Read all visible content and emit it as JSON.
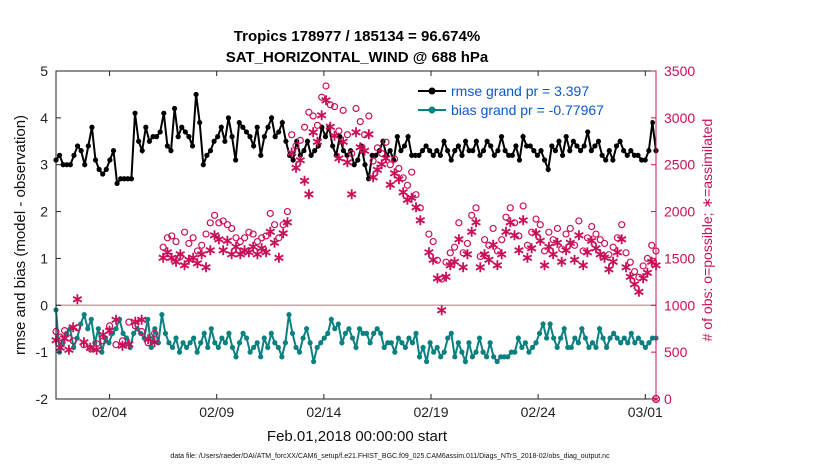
{
  "chart_data": {
    "type": "line",
    "title_line1": "Tropics 178977 / 185134 = 96.674%",
    "title_line2": "SAT_HORIZONTAL_WIND @ 688 hPa",
    "xlabel": "Feb.01,2018 00:00:00 start",
    "ylabel_left": "rmse and bias (model - observation)",
    "ylabel_right": "# of obs: o=possible; ∗=assimilated",
    "footer": "data file: /Users/raeder/DAI/ATM_forcXX/CAM6_setup/f.e21.FHIST_BGC.f09_025.CAM6assim.011/Diags_NTrS_2018-02/obs_diag_output.nc",
    "xlim": [
      1,
      29
    ],
    "ylim_left": [
      -2,
      5
    ],
    "ylim_right": [
      0,
      3500
    ],
    "x_ticks": [
      {
        "value": 3.5,
        "label": "02/04"
      },
      {
        "value": 8.5,
        "label": "02/09"
      },
      {
        "value": 13.5,
        "label": "02/14"
      },
      {
        "value": 18.5,
        "label": "02/19"
      },
      {
        "value": 23.5,
        "label": "02/24"
      },
      {
        "value": 28.5,
        "label": "03/01"
      }
    ],
    "y_ticks_left": [
      "-2",
      "-1",
      "0",
      "1",
      "2",
      "3",
      "4",
      "5"
    ],
    "y_ticks_right": [
      "0",
      "500",
      "1000",
      "1500",
      "2000",
      "2500",
      "3000",
      "3500"
    ],
    "zero_line": 0,
    "legend": {
      "position": "top-right",
      "entries": [
        "rmse grand pr = 3.397",
        "bias grand pr = -0.77967"
      ]
    },
    "colors": {
      "rmse": "#000000",
      "bias": "#0b8080",
      "obs": "#c8105a",
      "legend_text": "#0b57d0",
      "zero_line": "#c9a5a5"
    },
    "rmse": [
      3.1,
      3.2,
      3.0,
      3.0,
      3.0,
      3.2,
      3.4,
      3.3,
      3.0,
      3.4,
      3.8,
      3.1,
      2.9,
      2.8,
      2.9,
      3.1,
      3.3,
      2.6,
      2.7,
      2.7,
      2.7,
      2.7,
      4.1,
      3.5,
      3.3,
      3.8,
      3.5,
      3.6,
      3.6,
      3.7,
      4.1,
      3.4,
      3.3,
      4.2,
      3.6,
      3.8,
      3.7,
      3.6,
      3.4,
      4.5,
      3.9,
      3.0,
      3.2,
      3.3,
      3.5,
      3.6,
      3.8,
      3.5,
      4.0,
      3.6,
      3.1,
      3.9,
      3.8,
      3.7,
      3.6,
      3.4,
      3.8,
      3.2,
      3.6,
      3.8,
      4.0,
      3.6,
      3.7,
      3.9,
      3.5,
      3.2,
      3.1,
      3.5,
      3.2,
      3.3,
      3.5,
      3.2,
      3.3,
      3.4,
      3.8,
      3.6,
      3.8,
      3.4,
      3.2,
      3.6,
      3.3,
      3.2,
      3.3,
      3.0,
      3.1,
      3.4,
      3.0,
      2.7,
      3.2,
      3.2,
      3.3,
      3.5,
      3.2,
      3.3,
      3.1,
      3.6,
      3.3,
      3.4,
      3.6,
      3.2,
      3.2,
      3.2,
      3.3,
      3.4,
      3.3,
      3.2,
      3.3,
      3.2,
      3.5,
      3.3,
      3.1,
      3.3,
      3.4,
      3.2,
      3.5,
      3.3,
      3.3,
      3.5,
      3.2,
      3.3,
      3.5,
      3.4,
      3.2,
      3.3,
      3.6,
      3.3,
      3.2,
      3.2,
      3.4,
      3.1,
      3.6,
      3.4,
      3.4,
      3.3,
      3.2,
      3.3,
      3.1,
      2.9,
      3.4,
      3.3,
      3.5,
      3.2,
      3.6,
      3.3,
      3.5,
      3.4,
      3.3,
      3.4,
      3.7,
      3.3,
      3.4,
      3.5,
      3.2,
      3.1,
      3.3,
      3.1,
      3.4,
      3.5,
      3.3,
      3.2,
      3.3,
      3.2,
      3.2,
      3.1,
      3.1,
      3.3,
      3.9,
      3.3
    ],
    "bias": [
      -0.1,
      -1.0,
      -0.8,
      -0.6,
      -0.5,
      -0.9,
      -0.7,
      -0.4,
      -0.2,
      -0.5,
      -0.3,
      -0.8,
      -0.5,
      -1.0,
      -0.7,
      -0.8,
      -0.6,
      -0.5,
      -0.3,
      -0.6,
      -0.7,
      -0.9,
      -0.6,
      -0.5,
      -0.6,
      -0.7,
      -0.3,
      -0.9,
      -0.5,
      -0.8,
      -0.2,
      -0.6,
      -0.8,
      -0.9,
      -0.7,
      -1.0,
      -0.8,
      -0.9,
      -0.8,
      -0.7,
      -1.0,
      -0.8,
      -0.6,
      -0.9,
      -0.5,
      -0.8,
      -0.9,
      -0.7,
      -0.8,
      -0.6,
      -0.9,
      -1.1,
      -0.8,
      -0.6,
      -0.7,
      -1.0,
      -0.9,
      -0.8,
      -1.1,
      -0.7,
      -0.9,
      -0.6,
      -0.8,
      -0.9,
      -1.1,
      -0.8,
      -0.2,
      -0.6,
      -0.9,
      -1.0,
      -0.7,
      -0.5,
      -0.8,
      -1.2,
      -0.9,
      -0.8,
      -0.7,
      -0.6,
      -0.3,
      -0.5,
      -0.4,
      -0.8,
      -0.6,
      -0.5,
      -0.7,
      -0.9,
      -0.5,
      -0.6,
      -0.6,
      -0.8,
      -0.6,
      -0.5,
      -0.6,
      -0.9,
      -0.8,
      -0.8,
      -1.0,
      -0.7,
      -0.8,
      -0.9,
      -0.7,
      -0.8,
      -0.6,
      -1.1,
      -0.9,
      -1.2,
      -0.8,
      -1.0,
      -0.9,
      -1.1,
      -1.0,
      -0.7,
      -0.6,
      -1.1,
      -0.8,
      -1.0,
      -1.2,
      -0.8,
      -1.1,
      -1.0,
      -0.7,
      -1.0,
      -1.1,
      -0.8,
      -1.1,
      -1.2,
      -1.1,
      -1.1,
      -1.1,
      -1.0,
      -1.0,
      -0.7,
      -0.9,
      -0.8,
      -1.0,
      -0.9,
      -0.8,
      -0.6,
      -0.4,
      -0.7,
      -0.4,
      -0.7,
      -0.9,
      -0.7,
      -0.5,
      -0.9,
      -0.9,
      -0.7,
      -0.8,
      -0.5,
      -0.7,
      -0.9,
      -0.8,
      -0.9,
      -0.5,
      -0.7,
      -0.9,
      -0.7,
      -0.6,
      -0.7,
      -0.8,
      -0.7,
      -0.8,
      -0.6,
      -0.8,
      -0.7,
      -0.8,
      -0.9,
      -0.8,
      -0.7,
      -0.7
    ],
    "obs_possible": [
      [
        1.0,
        720
      ],
      [
        1.2,
        660
      ],
      [
        1.4,
        730
      ],
      [
        1.6,
        650
      ],
      [
        1.8,
        620
      ],
      [
        2.0,
        760
      ],
      [
        2.3,
        580
      ],
      [
        2.6,
        540
      ],
      [
        2.9,
        590
      ],
      [
        3.2,
        620
      ],
      [
        3.5,
        780
      ],
      [
        3.8,
        580
      ],
      [
        4.1,
        620
      ],
      [
        4.4,
        820
      ],
      [
        4.7,
        780
      ],
      [
        5.0,
        720
      ],
      [
        5.3,
        600
      ],
      [
        5.6,
        700
      ],
      [
        6.0,
        1620
      ],
      [
        6.2,
        1720
      ],
      [
        6.4,
        1740
      ],
      [
        6.6,
        1680
      ],
      [
        6.8,
        1520
      ],
      [
        7.0,
        1780
      ],
      [
        7.2,
        1660
      ],
      [
        7.4,
        1720
      ],
      [
        7.6,
        1580
      ],
      [
        7.8,
        1640
      ],
      [
        8.0,
        1760
      ],
      [
        8.2,
        1880
      ],
      [
        8.4,
        1960
      ],
      [
        8.6,
        1880
      ],
      [
        8.8,
        1900
      ],
      [
        9.0,
        1860
      ],
      [
        9.2,
        1820
      ],
      [
        9.4,
        1720
      ],
      [
        9.6,
        1680
      ],
      [
        9.8,
        1720
      ],
      [
        10.0,
        1780
      ],
      [
        10.2,
        1760
      ],
      [
        10.4,
        1680
      ],
      [
        10.6,
        1720
      ],
      [
        10.8,
        1740
      ],
      [
        11.0,
        1980
      ],
      [
        11.2,
        1860
      ],
      [
        11.4,
        1720
      ],
      [
        11.6,
        1860
      ],
      [
        11.8,
        2000
      ],
      [
        12.0,
        2820
      ],
      [
        12.2,
        2700
      ],
      [
        12.4,
        2760
      ],
      [
        12.6,
        2900
      ],
      [
        12.8,
        3060
      ],
      [
        13.0,
        3020
      ],
      [
        13.2,
        2920
      ],
      [
        13.4,
        3220
      ],
      [
        13.6,
        3340
      ],
      [
        13.8,
        3140
      ],
      [
        14.0,
        3120
      ],
      [
        14.2,
        2860
      ],
      [
        14.4,
        3080
      ],
      [
        14.6,
        2820
      ],
      [
        14.8,
        2620
      ],
      [
        15.0,
        3100
      ],
      [
        15.2,
        2960
      ],
      [
        15.4,
        2820
      ],
      [
        15.6,
        3020
      ],
      [
        15.8,
        2540
      ],
      [
        16.0,
        2680
      ],
      [
        16.2,
        2620
      ],
      [
        16.4,
        2740
      ],
      [
        16.6,
        2500
      ],
      [
        16.8,
        2560
      ],
      [
        17.0,
        2460
      ],
      [
        17.2,
        2360
      ],
      [
        17.4,
        2280
      ],
      [
        17.6,
        2420
      ],
      [
        17.8,
        2180
      ],
      [
        18.0,
        2040
      ],
      [
        18.4,
        1760
      ],
      [
        18.6,
        1680
      ],
      [
        18.8,
        1480
      ],
      [
        19.0,
        1280
      ],
      [
        19.2,
        1460
      ],
      [
        19.4,
        1560
      ],
      [
        19.6,
        1620
      ],
      [
        19.8,
        1880
      ],
      [
        20.0,
        1560
      ],
      [
        20.2,
        1660
      ],
      [
        20.4,
        1960
      ],
      [
        20.6,
        2040
      ],
      [
        20.8,
        1520
      ],
      [
        21.0,
        1700
      ],
      [
        21.2,
        1640
      ],
      [
        21.4,
        1820
      ],
      [
        21.6,
        1580
      ],
      [
        21.8,
        1700
      ],
      [
        22.0,
        1940
      ],
      [
        22.2,
        2040
      ],
      [
        22.4,
        1880
      ],
      [
        22.6,
        1740
      ],
      [
        22.8,
        2060
      ],
      [
        23.0,
        1640
      ],
      [
        23.2,
        1780
      ],
      [
        23.4,
        1920
      ],
      [
        23.6,
        1860
      ],
      [
        23.8,
        1580
      ],
      [
        24.0,
        1780
      ],
      [
        24.2,
        1700
      ],
      [
        24.4,
        1820
      ],
      [
        24.6,
        1600
      ],
      [
        24.8,
        1760
      ],
      [
        25.0,
        1820
      ],
      [
        25.2,
        1640
      ],
      [
        25.4,
        1900
      ],
      [
        25.6,
        1580
      ],
      [
        25.8,
        1720
      ],
      [
        26.0,
        1840
      ],
      [
        26.2,
        1760
      ],
      [
        26.4,
        1700
      ],
      [
        26.6,
        1660
      ],
      [
        26.8,
        1540
      ],
      [
        27.0,
        1620
      ],
      [
        27.2,
        1720
      ],
      [
        27.4,
        1860
      ],
      [
        27.6,
        1560
      ],
      [
        27.8,
        1460
      ],
      [
        28.0,
        1360
      ],
      [
        28.2,
        1300
      ],
      [
        28.4,
        1420
      ],
      [
        28.6,
        1500
      ],
      [
        28.8,
        1640
      ],
      [
        29.0,
        1580
      ]
    ],
    "obs_assimilated": [
      [
        1.0,
        640
      ],
      [
        1.2,
        560
      ],
      [
        1.4,
        660
      ],
      [
        1.6,
        540
      ],
      [
        1.8,
        780
      ],
      [
        2.0,
        1080
      ],
      [
        2.3,
        620
      ],
      [
        2.6,
        560
      ],
      [
        2.9,
        540
      ],
      [
        3.2,
        700
      ],
      [
        3.5,
        740
      ],
      [
        3.8,
        860
      ],
      [
        4.1,
        580
      ],
      [
        4.4,
        600
      ],
      [
        4.7,
        840
      ],
      [
        5.0,
        860
      ],
      [
        5.3,
        650
      ],
      [
        5.6,
        620
      ],
      [
        6.0,
        1520
      ],
      [
        6.2,
        1580
      ],
      [
        6.4,
        1520
      ],
      [
        6.6,
        1480
      ],
      [
        6.8,
        1560
      ],
      [
        7.0,
        1440
      ],
      [
        7.2,
        1500
      ],
      [
        7.4,
        1520
      ],
      [
        7.6,
        1460
      ],
      [
        7.8,
        1560
      ],
      [
        8.0,
        1420
      ],
      [
        8.2,
        1600
      ],
      [
        8.4,
        1760
      ],
      [
        8.6,
        1720
      ],
      [
        8.8,
        1600
      ],
      [
        9.0,
        1700
      ],
      [
        9.2,
        1560
      ],
      [
        9.4,
        1640
      ],
      [
        9.6,
        1560
      ],
      [
        9.8,
        1600
      ],
      [
        10.0,
        1580
      ],
      [
        10.2,
        1640
      ],
      [
        10.4,
        1560
      ],
      [
        10.6,
        1620
      ],
      [
        10.8,
        1580
      ],
      [
        11.0,
        1800
      ],
      [
        11.2,
        1680
      ],
      [
        11.4,
        1520
      ],
      [
        11.6,
        1780
      ],
      [
        11.8,
        1900
      ],
      [
        12.0,
        2640
      ],
      [
        12.2,
        2480
      ],
      [
        12.4,
        2560
      ],
      [
        12.6,
        2340
      ],
      [
        12.8,
        2200
      ],
      [
        13.0,
        2860
      ],
      [
        13.2,
        2760
      ],
      [
        13.4,
        3040
      ],
      [
        13.6,
        3200
      ],
      [
        13.8,
        2920
      ],
      [
        14.0,
        2820
      ],
      [
        14.2,
        2580
      ],
      [
        14.4,
        2760
      ],
      [
        14.6,
        2540
      ],
      [
        14.8,
        2200
      ],
      [
        15.0,
        2860
      ],
      [
        15.2,
        2700
      ],
      [
        15.4,
        2660
      ],
      [
        15.6,
        2840
      ],
      [
        15.8,
        2380
      ],
      [
        16.0,
        2460
      ],
      [
        16.2,
        2520
      ],
      [
        16.4,
        2580
      ],
      [
        16.6,
        2300
      ],
      [
        16.8,
        2420
      ],
      [
        17.0,
        2360
      ],
      [
        17.2,
        2220
      ],
      [
        17.4,
        2140
      ],
      [
        17.6,
        2160
      ],
      [
        17.8,
        2060
      ],
      [
        18.0,
        1920
      ],
      [
        18.4,
        1580
      ],
      [
        18.6,
        1500
      ],
      [
        18.8,
        1300
      ],
      [
        19.0,
        960
      ],
      [
        19.2,
        1320
      ],
      [
        19.4,
        1440
      ],
      [
        19.6,
        1480
      ],
      [
        19.8,
        1720
      ],
      [
        20.0,
        1420
      ],
      [
        20.2,
        1560
      ],
      [
        20.4,
        1800
      ],
      [
        20.6,
        1900
      ],
      [
        20.8,
        1420
      ],
      [
        21.0,
        1560
      ],
      [
        21.2,
        1500
      ],
      [
        21.4,
        1660
      ],
      [
        21.6,
        1440
      ],
      [
        21.8,
        1560
      ],
      [
        22.0,
        1800
      ],
      [
        22.2,
        1900
      ],
      [
        22.4,
        1760
      ],
      [
        22.6,
        1600
      ],
      [
        22.8,
        1920
      ],
      [
        23.0,
        1520
      ],
      [
        23.2,
        1620
      ],
      [
        23.4,
        1780
      ],
      [
        23.6,
        1700
      ],
      [
        23.8,
        1440
      ],
      [
        24.0,
        1640
      ],
      [
        24.2,
        1560
      ],
      [
        24.4,
        1680
      ],
      [
        24.6,
        1480
      ],
      [
        24.8,
        1600
      ],
      [
        25.0,
        1680
      ],
      [
        25.2,
        1500
      ],
      [
        25.4,
        1760
      ],
      [
        25.6,
        1440
      ],
      [
        25.8,
        1580
      ],
      [
        26.0,
        1700
      ],
      [
        26.2,
        1620
      ],
      [
        26.4,
        1560
      ],
      [
        26.6,
        1520
      ],
      [
        26.8,
        1400
      ],
      [
        27.0,
        1480
      ],
      [
        27.2,
        1580
      ],
      [
        27.4,
        1720
      ],
      [
        27.6,
        1420
      ],
      [
        27.8,
        1320
      ],
      [
        28.0,
        1240
      ],
      [
        28.2,
        1160
      ],
      [
        28.4,
        1300
      ],
      [
        28.6,
        1360
      ],
      [
        28.8,
        1480
      ],
      [
        29.0,
        1440
      ]
    ]
  }
}
